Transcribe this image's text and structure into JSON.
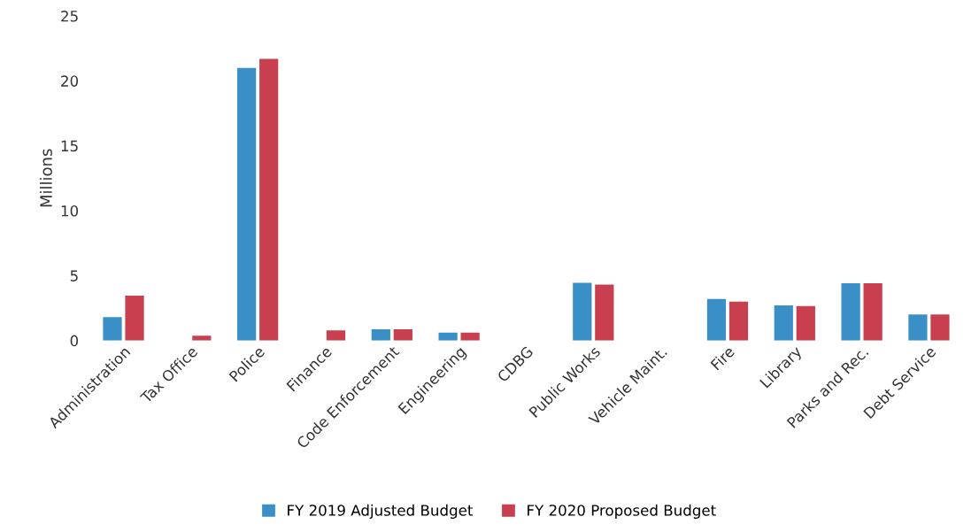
{
  "chart_data": {
    "type": "bar",
    "ylabel": "Millions",
    "categories": [
      "Administration",
      "Tax Office",
      "Police",
      "Finance",
      "Code Enforcement",
      "Engineering",
      "CDBG",
      "Public Works",
      "Vehicle Maint.",
      "Fire",
      "Library",
      "Parks and Rec.",
      "Debt Service"
    ],
    "series": [
      {
        "name": "FY 2019 Adjusted Budget",
        "color": "#3a8fc7",
        "values": [
          1.8,
          null,
          21.0,
          null,
          0.87,
          0.6,
          null,
          4.45,
          null,
          3.2,
          2.7,
          4.4,
          2.0
        ]
      },
      {
        "name": "FY 2020 Proposed Budget",
        "color": "#c8404f",
        "values": [
          3.45,
          0.37,
          21.7,
          0.77,
          0.87,
          0.6,
          null,
          4.3,
          null,
          3.0,
          2.65,
          4.4,
          2.0
        ]
      }
    ],
    "ylim": [
      0,
      25
    ],
    "yticks": [
      0,
      5,
      10,
      15,
      20,
      25
    ],
    "grid": false,
    "legend": "bottom"
  }
}
